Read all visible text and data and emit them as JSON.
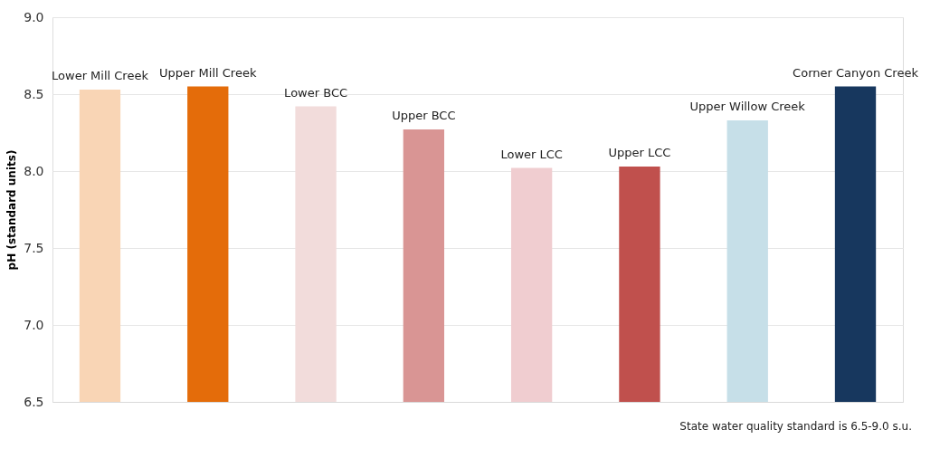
{
  "chart_data": {
    "type": "bar",
    "ylabel": "pH (standard units)",
    "categories": [
      "Lower Mill Creek",
      "Upper Mill Creek",
      "Lower BCC",
      "Upper BCC",
      "Lower LCC",
      "Upper LCC",
      "Upper Willow Creek",
      "Corner Canyon Creek"
    ],
    "values": [
      8.53,
      8.55,
      8.42,
      8.27,
      8.02,
      8.03,
      8.33,
      8.55
    ],
    "colors": [
      "#f9d5b5",
      "#e46c0a",
      "#f2dcdb",
      "#d99594",
      "#f0cdd0",
      "#c0504d",
      "#c6dfe8",
      "#17375e"
    ],
    "ylim": [
      6.5,
      9.0
    ],
    "yticks": [
      {
        "value": 6.5,
        "label": "6.5"
      },
      {
        "value": 7.0,
        "label": "7.0"
      },
      {
        "value": 7.5,
        "label": "7.5"
      },
      {
        "value": 8.0,
        "label": "8.0"
      },
      {
        "value": 8.5,
        "label": "8.5"
      },
      {
        "value": 9.0,
        "label": "9.0"
      }
    ],
    "grid": "y",
    "annotations": [
      "State water quality standard is 6.5-9.0 s.u."
    ]
  }
}
